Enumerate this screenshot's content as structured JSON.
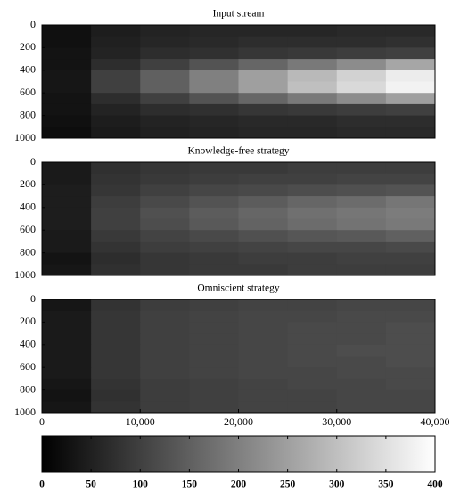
{
  "chart_data": [
    {
      "type": "heatmap",
      "title": "Input stream",
      "xlim": [
        0,
        40000
      ],
      "ylim": [
        0,
        1000
      ],
      "yticks": [
        0,
        200,
        400,
        600,
        800,
        1000
      ],
      "values": [
        [
          25,
          45,
          55,
          60,
          60,
          60,
          65,
          65
        ],
        [
          25,
          50,
          60,
          65,
          70,
          70,
          70,
          75
        ],
        [
          30,
          55,
          70,
          75,
          85,
          90,
          95,
          100
        ],
        [
          30,
          70,
          100,
          130,
          160,
          190,
          220,
          260
        ],
        [
          35,
          100,
          150,
          200,
          250,
          290,
          330,
          370
        ],
        [
          35,
          100,
          150,
          200,
          250,
          300,
          340,
          380
        ],
        [
          30,
          70,
          100,
          130,
          160,
          190,
          220,
          250
        ],
        [
          30,
          55,
          70,
          75,
          85,
          90,
          95,
          100
        ],
        [
          25,
          45,
          55,
          60,
          65,
          65,
          70,
          70
        ],
        [
          20,
          40,
          50,
          55,
          60,
          60,
          65,
          65
        ]
      ]
    },
    {
      "type": "heatmap",
      "title": "Knowledge-free strategy",
      "xlim": [
        0,
        40000
      ],
      "ylim": [
        0,
        1000
      ],
      "yticks": [
        0,
        200,
        400,
        600,
        800,
        1000
      ],
      "values": [
        [
          40,
          75,
          85,
          90,
          90,
          95,
          95,
          95
        ],
        [
          40,
          80,
          90,
          95,
          100,
          100,
          105,
          105
        ],
        [
          45,
          85,
          100,
          110,
          115,
          120,
          125,
          130
        ],
        [
          45,
          95,
          115,
          130,
          145,
          160,
          170,
          185
        ],
        [
          45,
          100,
          125,
          145,
          160,
          175,
          185,
          195
        ],
        [
          45,
          100,
          120,
          140,
          155,
          170,
          180,
          190
        ],
        [
          40,
          90,
          105,
          115,
          125,
          135,
          140,
          150
        ],
        [
          40,
          80,
          95,
          100,
          105,
          110,
          110,
          115
        ],
        [
          30,
          70,
          85,
          90,
          95,
          95,
          100,
          100
        ],
        [
          35,
          75,
          85,
          90,
          90,
          95,
          95,
          95
        ]
      ]
    },
    {
      "type": "heatmap",
      "title": "Omniscient strategy",
      "xlim": [
        0,
        40000
      ],
      "ylim": [
        0,
        1000
      ],
      "yticks": [
        0,
        200,
        400,
        600,
        800,
        1000
      ],
      "xticks": [
        0,
        {
          "value": 10000,
          "label": "10,000"
        },
        {
          "value": 20000,
          "label": "20,000"
        },
        {
          "value": 30000,
          "label": "30,000"
        },
        {
          "value": 40000,
          "label": "40,000"
        }
      ],
      "values": [
        [
          35,
          80,
          95,
          100,
          105,
          105,
          110,
          110
        ],
        [
          40,
          85,
          100,
          105,
          110,
          110,
          115,
          115
        ],
        [
          40,
          85,
          100,
          105,
          110,
          115,
          115,
          120
        ],
        [
          40,
          85,
          100,
          105,
          110,
          115,
          115,
          120
        ],
        [
          40,
          85,
          100,
          105,
          110,
          115,
          120,
          120
        ],
        [
          40,
          85,
          100,
          105,
          110,
          115,
          115,
          120
        ],
        [
          40,
          85,
          100,
          105,
          110,
          110,
          115,
          115
        ],
        [
          35,
          80,
          95,
          100,
          105,
          110,
          110,
          115
        ],
        [
          30,
          75,
          95,
          100,
          105,
          105,
          110,
          110
        ],
        [
          35,
          80,
          95,
          100,
          105,
          105,
          110,
          110
        ]
      ]
    },
    {
      "type": "colorbar",
      "clim": [
        0,
        400
      ],
      "colormap": [
        "#000000",
        "#ffffff"
      ],
      "ticks": [
        0,
        50,
        100,
        150,
        200,
        250,
        300,
        350,
        400
      ]
    }
  ]
}
